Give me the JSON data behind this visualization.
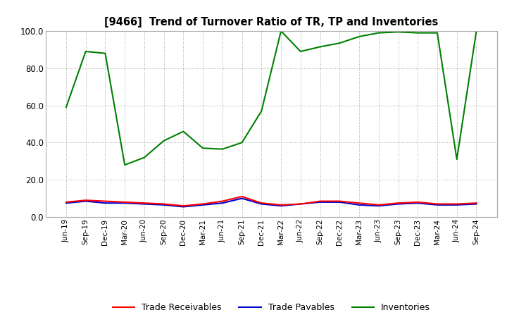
{
  "title": "[9466]  Trend of Turnover Ratio of TR, TP and Inventories",
  "x_labels": [
    "Jun-19",
    "Sep-19",
    "Dec-19",
    "Mar-20",
    "Jun-20",
    "Sep-20",
    "Dec-20",
    "Mar-21",
    "Jun-21",
    "Sep-21",
    "Dec-21",
    "Mar-22",
    "Jun-22",
    "Sep-22",
    "Dec-22",
    "Mar-23",
    "Jun-23",
    "Sep-23",
    "Dec-23",
    "Mar-24",
    "Jun-24",
    "Sep-24"
  ],
  "trade_receivables": [
    8.0,
    9.0,
    8.5,
    8.0,
    7.5,
    7.0,
    6.0,
    7.0,
    8.5,
    11.0,
    7.5,
    6.5,
    7.0,
    8.5,
    8.5,
    7.5,
    6.5,
    7.5,
    8.0,
    7.0,
    7.0,
    7.5
  ],
  "trade_payables": [
    7.5,
    8.5,
    7.5,
    7.5,
    7.0,
    6.5,
    5.5,
    6.5,
    7.5,
    10.0,
    7.0,
    6.0,
    7.0,
    8.0,
    8.0,
    6.5,
    6.0,
    7.0,
    7.5,
    6.5,
    6.5,
    7.0
  ],
  "inventories": [
    59.0,
    89.0,
    88.0,
    28.0,
    32.0,
    41.0,
    46.0,
    37.0,
    36.5,
    40.0,
    57.0,
    100.0,
    89.0,
    91.5,
    93.5,
    97.0,
    99.0,
    99.5,
    99.0,
    99.0,
    31.0,
    100.0
  ],
  "ylim": [
    0.0,
    100.0
  ],
  "yticks": [
    0.0,
    20.0,
    40.0,
    60.0,
    80.0,
    100.0
  ],
  "color_tr": "#ff0000",
  "color_tp": "#0000cc",
  "color_inv": "#008000",
  "legend_tr": "Trade Receivables",
  "legend_tp": "Trade Payables",
  "legend_inv": "Inventories",
  "background_color": "#ffffff",
  "grid_color": "#999999"
}
